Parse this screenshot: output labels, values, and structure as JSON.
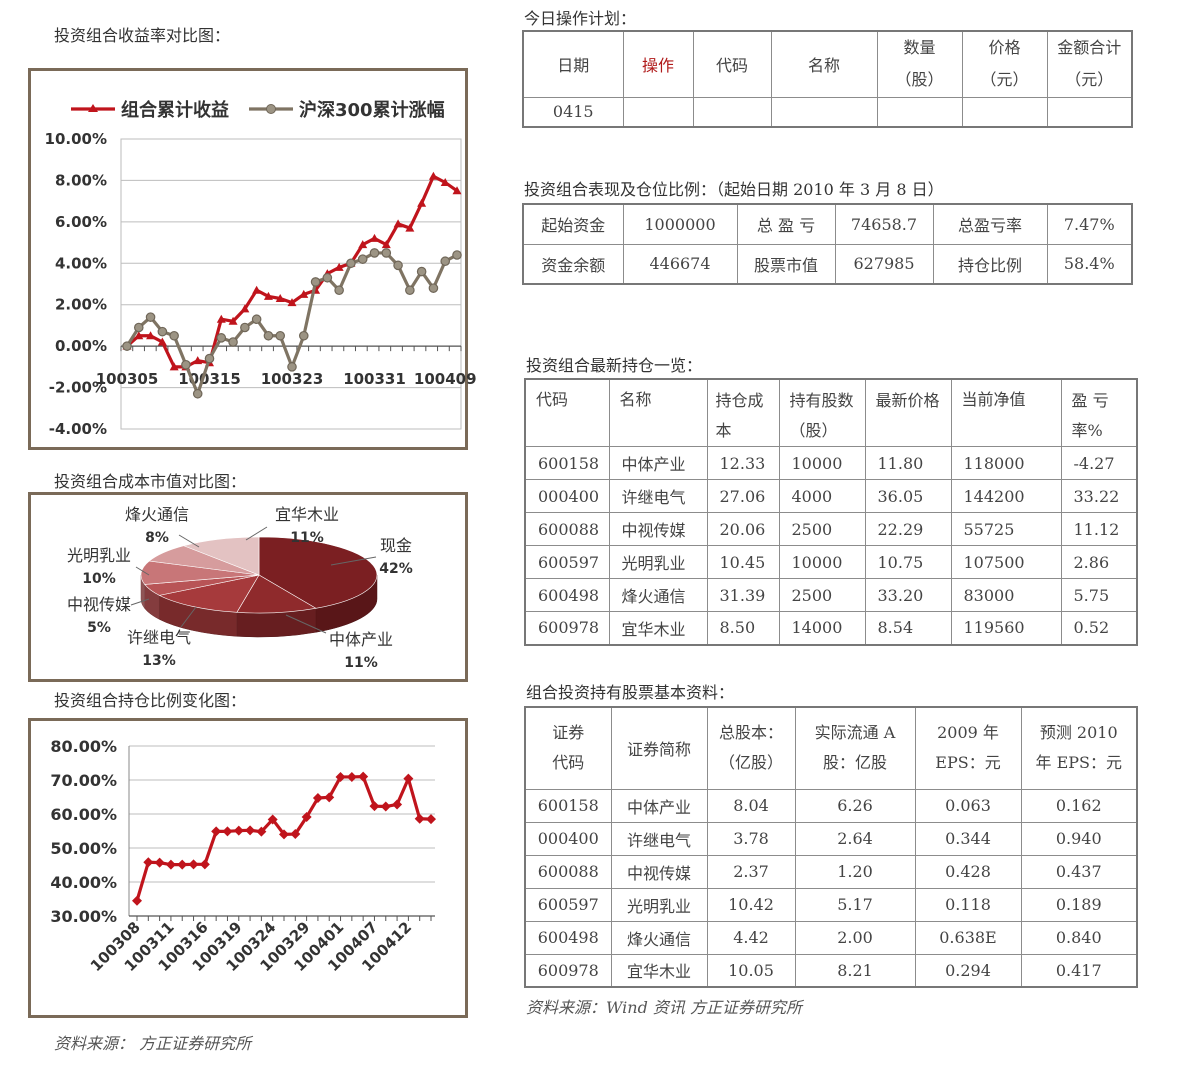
{
  "titles": {
    "returns_chart": "投资组合收益率对比图：",
    "plan": "今日操作计划：",
    "performance": "投资组合表现及仓位比例：（起始日期 2010 年 3 月 8 日）",
    "cost_chart": "投资组合成本市值对比图：",
    "holdings": "投资组合最新持仓一览：",
    "position_chart": "投资组合持仓比例变化图：",
    "stock_info": "组合投资持有股票基本资料："
  },
  "plan_table": {
    "headers": [
      "日期",
      "操作",
      "代码",
      "名称",
      "数量（股）",
      "价格（元）",
      "金额合计（元）"
    ],
    "rows": [
      [
        "0415",
        "",
        "",
        "",
        "",
        "",
        ""
      ]
    ]
  },
  "performance_table": {
    "rows": [
      [
        "起始资金",
        "1000000",
        "总 盈 亏",
        "74658.7",
        "总盈亏率",
        "7.47%"
      ],
      [
        "资金余额",
        "446674",
        "股票市值",
        "627985",
        "持仓比例",
        "58.4%"
      ]
    ]
  },
  "holdings_table": {
    "headers": [
      "代码",
      "名称",
      "持仓成本",
      "持有股数（股）",
      "最新价格",
      "当前净值",
      "盈 亏率%"
    ],
    "rows": [
      [
        "600158",
        "中体产业",
        "12.33",
        "10000",
        "11.80",
        "118000",
        "-4.27"
      ],
      [
        "000400",
        "许继电气",
        "27.06",
        "4000",
        "36.05",
        "144200",
        "33.22"
      ],
      [
        "600088",
        "中视传媒",
        "20.06",
        "2500",
        "22.29",
        "55725",
        "11.12"
      ],
      [
        "600597",
        "光明乳业",
        "10.45",
        "10000",
        "10.75",
        "107500",
        "2.86"
      ],
      [
        "600498",
        "烽火通信",
        "31.39",
        "2500",
        "33.20",
        "83000",
        "5.75"
      ],
      [
        "600978",
        "宜华木业",
        "8.50",
        "14000",
        "8.54",
        "119560",
        "0.52"
      ]
    ]
  },
  "stock_info_table": {
    "headers": [
      "证券代码",
      "证券简称",
      "总股本：（亿股）",
      "实际流通 A 股：亿股",
      "2009 年 EPS：元",
      "预测 2010 年 EPS：元"
    ],
    "rows": [
      [
        "600158",
        "中体产业",
        "8.04",
        "6.26",
        "0.063",
        "0.162"
      ],
      [
        "000400",
        "许继电气",
        "3.78",
        "2.64",
        "0.344",
        "0.940"
      ],
      [
        "600088",
        "中视传媒",
        "2.37",
        "1.20",
        "0.428",
        "0.437"
      ],
      [
        "600597",
        "光明乳业",
        "10.42",
        "5.17",
        "0.118",
        "0.189"
      ],
      [
        "600498",
        "烽火通信",
        "4.42",
        "2.00",
        "0.638E",
        "0.840"
      ],
      [
        "600978",
        "宜华木业",
        "10.05",
        "8.21",
        "0.294",
        "0.417"
      ]
    ]
  },
  "source_right": "资料来源：Wind 资讯 方正证券研究所",
  "source_left": "资料来源：  方正证券研究所",
  "colors": {
    "portfolio": "#c0141c",
    "index": "#7f7463",
    "frame": "#7a6a58"
  },
  "chart_data": [
    {
      "type": "line",
      "ylim": [
        -0.04,
        0.1
      ],
      "y_ticks": [
        "10.00%",
        "8.00%",
        "6.00%",
        "4.00%",
        "2.00%",
        "0.00%",
        "-2.00%",
        "-4.00%"
      ],
      "x_tick_labels": [
        "100305",
        "100315",
        "100323",
        "100331",
        "100409"
      ],
      "legend_position": "top",
      "series": [
        {
          "name": "组合累计收益",
          "color": "#c0141c",
          "values": [
            0.0,
            0.005,
            0.005,
            0.002,
            -0.01,
            -0.01,
            -0.007,
            -0.008,
            0.013,
            0.012,
            0.018,
            0.027,
            0.024,
            0.023,
            0.021,
            0.025,
            0.027,
            0.035,
            0.038,
            0.04,
            0.049,
            0.052,
            0.049,
            0.059,
            0.057,
            0.069,
            0.082,
            0.079,
            0.075
          ]
        },
        {
          "name": "沪深300累计涨幅",
          "color": "#7f7463",
          "values": [
            0.0,
            0.009,
            0.014,
            0.007,
            0.005,
            -0.009,
            -0.023,
            -0.006,
            0.004,
            0.002,
            0.009,
            0.013,
            0.005,
            0.005,
            -0.01,
            0.005,
            0.031,
            0.033,
            0.027,
            0.04,
            0.042,
            0.045,
            0.045,
            0.039,
            0.027,
            0.036,
            0.028,
            0.041,
            0.044
          ]
        }
      ]
    },
    {
      "type": "pie",
      "slices": [
        {
          "label": "现金",
          "pct": "42%",
          "value": 42,
          "color": "#7b1f22"
        },
        {
          "label": "中体产业",
          "pct": "11%",
          "value": 11,
          "color": "#8f2a2c"
        },
        {
          "label": "许继电气",
          "pct": "13%",
          "value": 13,
          "color": "#a63a3c"
        },
        {
          "label": "中视传媒",
          "pct": "5%",
          "value": 5,
          "color": "#b85456"
        },
        {
          "label": "光明乳业",
          "pct": "10%",
          "value": 10,
          "color": "#c87678"
        },
        {
          "label": "烽火通信",
          "pct": "8%",
          "value": 8,
          "color": "#d69c9d"
        },
        {
          "label": "宜华木业",
          "pct": "11%",
          "value": 11,
          "color": "#e3c2c2"
        }
      ]
    },
    {
      "type": "line",
      "ylim": [
        0.3,
        0.8
      ],
      "y_ticks": [
        "80.00%",
        "70.00%",
        "60.00%",
        "50.00%",
        "40.00%",
        "30.00%"
      ],
      "x_tick_labels": [
        "100308",
        "100311",
        "100316",
        "100319",
        "100324",
        "100329",
        "100401",
        "100407",
        "100412"
      ],
      "series": [
        {
          "name": "",
          "color": "#c0141c",
          "values": [
            0.345,
            0.458,
            0.457,
            0.451,
            0.451,
            0.452,
            0.452,
            0.549,
            0.549,
            0.551,
            0.552,
            0.548,
            0.584,
            0.54,
            0.541,
            0.591,
            0.647,
            0.649,
            0.709,
            0.709,
            0.71,
            0.623,
            0.622,
            0.628,
            0.704,
            0.586,
            0.585
          ]
        }
      ]
    }
  ]
}
